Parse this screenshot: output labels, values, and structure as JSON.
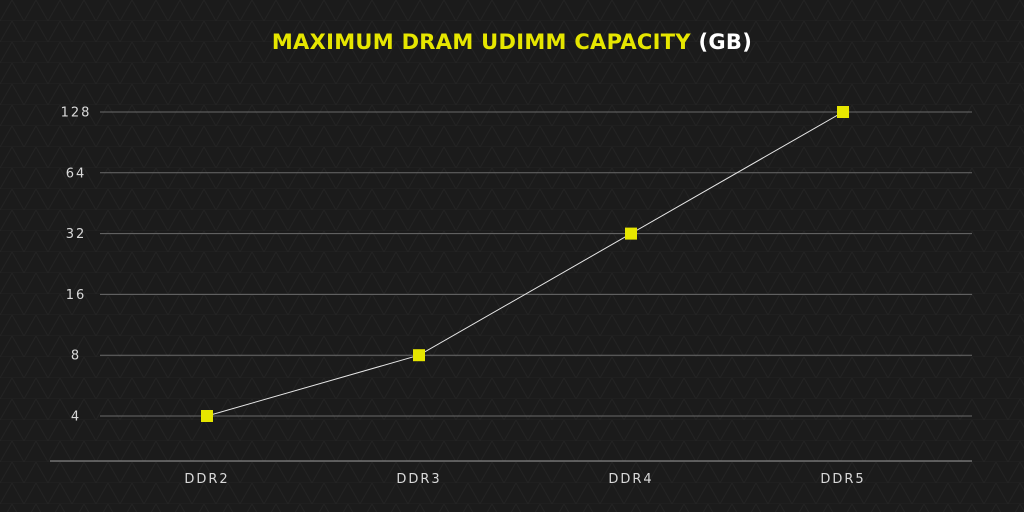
{
  "chart_data": {
    "type": "line",
    "title": "MAXIMUM DRAM UDIMM CAPACITY",
    "title_unit": "(GB)",
    "xlabel": "",
    "ylabel": "",
    "y_scale": "log2",
    "categories": [
      "DDR2",
      "DDR3",
      "DDR4",
      "DDR5"
    ],
    "series": [
      {
        "values": [
          4,
          8,
          32,
          128
        ]
      }
    ],
    "y_ticks": [
      4,
      8,
      16,
      32,
      64,
      128
    ],
    "ylim": [
      4,
      128
    ],
    "grid": true,
    "legend": "none"
  },
  "colors": {
    "background": "#1b1b1b",
    "accent": "#e6e600",
    "title_text": "#ffffff",
    "line": "#e6e6e6",
    "grid": "#6a6a6a",
    "axis": "#9a9a9a",
    "tick_text": "#d9d9d9"
  }
}
